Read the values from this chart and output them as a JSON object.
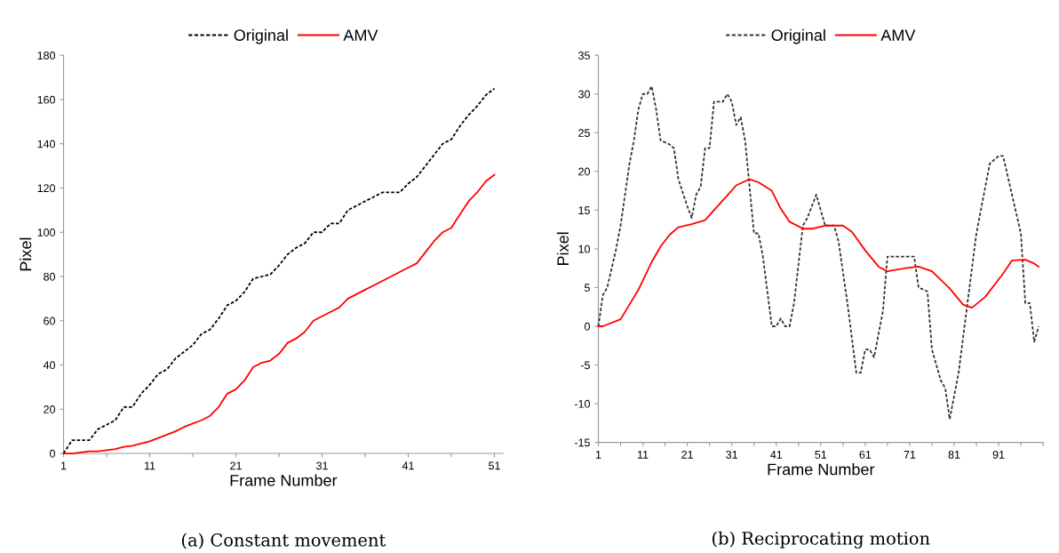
{
  "chart_data": [
    {
      "type": "line",
      "xlabel": "Frame Number",
      "ylabel": "Pixel",
      "annotations": [
        "(a) Constant movement"
      ],
      "legend": "top",
      "grid": false,
      "xlim": [
        1,
        52
      ],
      "ylim": [
        0,
        180
      ],
      "xticks": [
        1,
        {
          "value": 6,
          "label": null
        },
        11,
        {
          "value": 16,
          "label": null
        },
        21,
        {
          "value": 26,
          "label": null
        },
        31,
        {
          "value": 36,
          "label": null
        },
        41,
        {
          "value": 46,
          "label": null
        },
        51
      ],
      "yticks": [
        0,
        20,
        40,
        60,
        80,
        100,
        120,
        140,
        160,
        180
      ],
      "series": [
        {
          "name": "Original",
          "color": "#000000",
          "line_style": "dashed",
          "x": [
            1,
            2,
            3,
            4,
            5,
            6,
            7,
            8,
            9,
            10,
            11,
            12,
            13,
            14,
            15,
            16,
            17,
            18,
            19,
            20,
            21,
            22,
            23,
            24,
            25,
            26,
            27,
            28,
            29,
            30,
            31,
            32,
            33,
            34,
            35,
            36,
            37,
            38,
            39,
            40,
            41,
            42,
            43,
            44,
            45,
            46,
            47,
            48,
            49,
            50,
            51
          ],
          "values": [
            0,
            6,
            6,
            6,
            11,
            13,
            15,
            21,
            21,
            27,
            31,
            36,
            38,
            43,
            46,
            49,
            54,
            56,
            61,
            67,
            69,
            73,
            79,
            80,
            81,
            85,
            90,
            93,
            95,
            100,
            100,
            104,
            104,
            110,
            112,
            114,
            116,
            118,
            118,
            118,
            122,
            125,
            130,
            135,
            140,
            142,
            148,
            153,
            157,
            162,
            165
          ]
        },
        {
          "name": "AMV",
          "color": "#ff0000",
          "line_style": "solid",
          "x": [
            1,
            2,
            3,
            4,
            5,
            6,
            7,
            8,
            9,
            10,
            11,
            12,
            13,
            14,
            15,
            16,
            17,
            18,
            19,
            20,
            21,
            22,
            23,
            24,
            25,
            26,
            27,
            28,
            29,
            30,
            31,
            32,
            33,
            34,
            35,
            36,
            37,
            38,
            39,
            40,
            41,
            42,
            43,
            44,
            45,
            46,
            47,
            48,
            49,
            50,
            51
          ],
          "values": [
            0,
            0,
            0.5,
            1,
            1,
            1.5,
            2,
            3,
            3.5,
            4.5,
            5.5,
            7,
            8.5,
            10,
            12,
            13.5,
            15,
            17,
            21,
            27,
            29,
            33,
            39,
            41,
            42,
            45,
            50,
            52,
            55,
            60,
            62,
            64,
            66,
            70,
            72,
            74,
            76,
            78,
            80,
            82,
            84,
            86,
            91,
            96,
            100,
            102,
            108,
            114,
            118,
            123,
            126
          ]
        }
      ]
    },
    {
      "type": "line",
      "xlabel": "Frame Number",
      "ylabel": "Pixel",
      "annotations": [
        "(b) Reciprocating motion"
      ],
      "legend": "top",
      "grid": false,
      "xlim": [
        1,
        101
      ],
      "ylim": [
        -15,
        35
      ],
      "xticks": [
        1,
        {
          "value": 6,
          "label": null
        },
        11,
        {
          "value": 16,
          "label": null
        },
        21,
        {
          "value": 26,
          "label": null
        },
        31,
        {
          "value": 36,
          "label": null
        },
        41,
        {
          "value": 46,
          "label": null
        },
        51,
        {
          "value": 56,
          "label": null
        },
        61,
        {
          "value": 66,
          "label": null
        },
        71,
        {
          "value": 76,
          "label": null
        },
        81,
        {
          "value": 86,
          "label": null
        },
        91,
        {
          "value": 96,
          "label": null
        },
        {
          "value": 101,
          "label": null
        }
      ],
      "yticks": [
        -15,
        -10,
        -5,
        0,
        5,
        10,
        15,
        20,
        25,
        30,
        35
      ],
      "series": [
        {
          "name": "Original",
          "color": "#333333",
          "line_style": "dashed",
          "x": [
            1,
            2,
            3,
            5,
            6,
            8,
            9,
            10,
            11,
            12,
            13,
            14,
            15,
            17,
            18,
            19,
            21,
            22,
            23,
            24,
            25,
            26,
            27,
            29,
            30,
            31,
            32,
            33,
            34,
            36,
            37,
            38,
            40,
            41,
            42,
            43,
            44,
            45,
            46,
            47,
            48,
            50,
            52,
            54,
            55,
            57,
            59,
            60,
            61,
            62,
            63,
            65,
            66,
            72,
            73,
            75,
            76,
            78,
            79,
            80,
            82,
            84,
            86,
            88,
            89,
            91,
            92,
            94,
            96,
            97,
            98,
            99,
            100
          ],
          "values": [
            0,
            4,
            5,
            10,
            13,
            21,
            24,
            28,
            30,
            30,
            31,
            28,
            24,
            23.5,
            23,
            19,
            15.5,
            14,
            17,
            18,
            23,
            23,
            29,
            29,
            30,
            29,
            26,
            27,
            24,
            12,
            12,
            9,
            0,
            0,
            1,
            0,
            0,
            3,
            8,
            13,
            14,
            17,
            13,
            13,
            11,
            3,
            -6,
            -6,
            -3,
            -3,
            -4,
            2,
            9,
            9,
            5,
            4.5,
            -3,
            -7,
            -8,
            -12,
            -6,
            3,
            12,
            18,
            21,
            22,
            22,
            17,
            12,
            3,
            3,
            -2,
            0
          ]
        },
        {
          "name": "AMV",
          "color": "#ff0000",
          "line_style": "solid",
          "x": [
            1,
            2,
            6,
            8,
            10,
            13,
            15,
            17,
            19,
            22,
            25,
            27,
            30,
            32,
            35,
            37,
            40,
            42,
            44,
            47,
            49,
            52,
            56,
            58,
            61,
            64,
            66,
            70,
            73,
            76,
            80,
            83,
            85,
            88,
            92,
            94,
            97,
            99,
            100
          ],
          "values": [
            0,
            0,
            0.9,
            2.8,
            4.7,
            8.3,
            10.3,
            11.8,
            12.8,
            13.2,
            13.7,
            15,
            16.9,
            18.2,
            19,
            18.6,
            17.5,
            15.2,
            13.5,
            12.6,
            12.6,
            13,
            13,
            12.2,
            9.8,
            7.7,
            7.1,
            7.5,
            7.7,
            7.1,
            4.9,
            2.8,
            2.4,
            3.8,
            6.8,
            8.5,
            8.6,
            8.1,
            7.7
          ]
        }
      ]
    }
  ]
}
